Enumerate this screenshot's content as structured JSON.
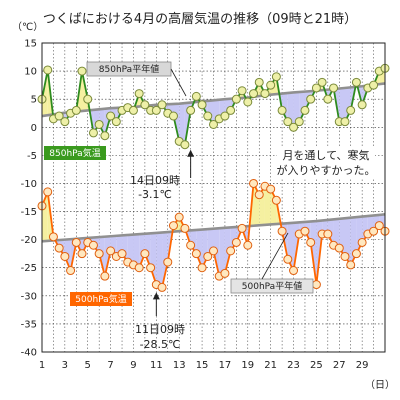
{
  "title": "つくばにおける4月の高層気温の推移（09時と21時）",
  "chart_data": {
    "type": "line",
    "ylabel": "（℃）",
    "xlabel": "（日）",
    "ylim": [
      -40,
      15
    ],
    "xlim": [
      1,
      31
    ],
    "yticks": [
      15,
      10,
      5,
      0,
      -5,
      -10,
      -15,
      -20,
      -25,
      -30,
      -35,
      -40
    ],
    "xticks": [
      1,
      3,
      5,
      7,
      9,
      11,
      13,
      15,
      17,
      19,
      21,
      23,
      25,
      27,
      29
    ],
    "grid": true,
    "series": [
      {
        "name": "850hPa平年値",
        "color": "#909090",
        "x": [
          1,
          3,
          5,
          7,
          9,
          11,
          13,
          15,
          17,
          19,
          21,
          23,
          25,
          27,
          29,
          31
        ],
        "values": [
          2.0,
          2.6,
          3.0,
          3.4,
          3.6,
          4.0,
          4.2,
          4.6,
          5.0,
          5.3,
          5.8,
          6.2,
          6.5,
          6.9,
          7.3,
          7.8
        ]
      },
      {
        "name": "850hPa気温",
        "color": "#2e8b1e",
        "x": [
          1,
          1.5,
          2,
          2.5,
          3,
          3.5,
          4,
          4.5,
          5,
          5.5,
          6,
          6.5,
          7,
          7.5,
          8,
          8.5,
          9,
          9.5,
          10,
          10.5,
          11,
          11.5,
          12,
          12.5,
          13,
          13.5,
          14,
          14.5,
          15,
          15.5,
          16,
          16.5,
          17,
          17.5,
          18,
          18.5,
          19,
          19.5,
          20,
          20.5,
          21,
          21.5,
          22,
          22.5,
          23,
          23.5,
          24,
          24.5,
          25,
          25.5,
          26,
          26.5,
          27,
          27.5,
          28,
          28.5,
          29,
          29.5,
          30,
          30.5,
          31
        ],
        "values": [
          5.0,
          10.2,
          1.5,
          2.0,
          1.0,
          2.5,
          3.0,
          10.0,
          5.0,
          -1.0,
          0.5,
          -1.5,
          2.0,
          1.0,
          3.0,
          3.5,
          3.0,
          6.0,
          4.0,
          3.0,
          3.0,
          4.0,
          2.5,
          2.0,
          -2.5,
          -3.1,
          3.0,
          5.5,
          4.0,
          2.0,
          0.5,
          1.5,
          2.0,
          3.0,
          5.0,
          6.5,
          4.5,
          6.0,
          8.0,
          6.0,
          7.5,
          9.0,
          3.0,
          1.0,
          0.0,
          1.0,
          3.0,
          5.0,
          7.0,
          8.0,
          5.0,
          7.0,
          1.0,
          1.0,
          3.0,
          8.0,
          4.0,
          7.0,
          7.5,
          10.0,
          10.5
        ]
      },
      {
        "name": "500hPa平年値",
        "color": "#909090",
        "x": [
          1,
          3,
          5,
          7,
          9,
          11,
          13,
          15,
          17,
          19,
          21,
          23,
          25,
          27,
          29,
          31
        ],
        "values": [
          -20.3,
          -20.0,
          -19.7,
          -19.4,
          -19.1,
          -18.8,
          -18.5,
          -18.2,
          -17.9,
          -17.6,
          -17.3,
          -17.0,
          -16.7,
          -16.3,
          -15.9,
          -15.5
        ]
      },
      {
        "name": "500hPa気温",
        "color": "#ff6600",
        "x": [
          1,
          1.5,
          2,
          2.5,
          3,
          3.5,
          4,
          4.5,
          5,
          5.5,
          6,
          6.5,
          7,
          7.5,
          8,
          8.5,
          9,
          9.5,
          10,
          10.5,
          11,
          11.5,
          12,
          12.5,
          13,
          13.5,
          14,
          14.5,
          15,
          15.5,
          16,
          16.5,
          17,
          17.5,
          18,
          18.5,
          19,
          19.5,
          20,
          20.5,
          21,
          21.5,
          22,
          22.5,
          23,
          23.5,
          24,
          24.5,
          25,
          25.5,
          26,
          26.5,
          27,
          27.5,
          28,
          28.5,
          29,
          29.5,
          30,
          30.5,
          31
        ],
        "values": [
          -14.0,
          -11.5,
          -19.5,
          -21.5,
          -23.0,
          -25.5,
          -20.5,
          -22.5,
          -20.5,
          -21.0,
          -22.5,
          -26.5,
          -22.0,
          -23.0,
          -22.5,
          -24.0,
          -24.5,
          -25.0,
          -22.5,
          -25.0,
          -28.0,
          -28.5,
          -24.0,
          -17.5,
          -16.0,
          -18.0,
          -21.0,
          -22.5,
          -25.0,
          -23.0,
          -22.0,
          -26.5,
          -26.0,
          -22.0,
          -20.5,
          -18.0,
          -21.0,
          -10.0,
          -12.0,
          -10.5,
          -11.0,
          -13.0,
          -18.5,
          -23.5,
          -25.5,
          -19.0,
          -18.5,
          -20.5,
          -28.0,
          -19.0,
          -19.0,
          -21.0,
          -21.5,
          -23.0,
          -24.5,
          -22.5,
          -20.5,
          -19.0,
          -18.5,
          -17.5,
          -18.5
        ]
      }
    ],
    "labels": {
      "s850_normal": "850hPa平年値",
      "s850_temp": "850hPa気温",
      "s500_normal": "500hPa平年値",
      "s500_temp": "500hPa気温"
    },
    "annotations": {
      "min850_l1": "14日09時",
      "min850_l2": "-3.1℃",
      "min500_l1": "11日09時",
      "min500_l2": "-28.5℃",
      "comment_l1": "月を通して、寒気",
      "comment_l2": "が入りやすかった。"
    },
    "colors": {
      "cold_fill": "#c8c8f5",
      "warm_fill": "#f5f0a0",
      "marker_850_fill": "#eef0a8",
      "marker_500_fill": "#ffe8c0"
    }
  }
}
